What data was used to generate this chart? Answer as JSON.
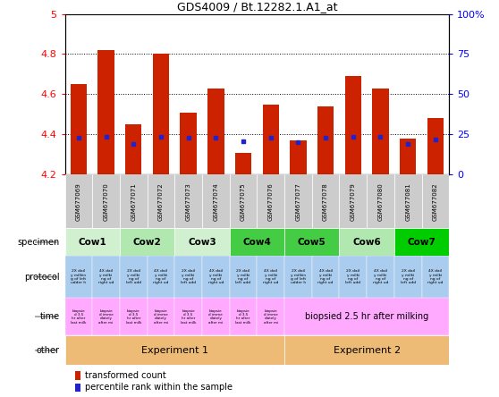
{
  "title": "GDS4009 / Bt.12282.1.A1_at",
  "samples": [
    "GSM677069",
    "GSM677070",
    "GSM677071",
    "GSM677072",
    "GSM677073",
    "GSM677074",
    "GSM677075",
    "GSM677076",
    "GSM677077",
    "GSM677078",
    "GSM677079",
    "GSM677080",
    "GSM677081",
    "GSM677082"
  ],
  "bar_values": [
    4.65,
    4.82,
    4.45,
    4.8,
    4.51,
    4.63,
    4.31,
    4.55,
    4.37,
    4.54,
    4.69,
    4.63,
    4.38,
    4.48
  ],
  "percentile_values": [
    4.385,
    4.387,
    4.355,
    4.387,
    4.382,
    4.382,
    4.365,
    4.383,
    4.36,
    4.382,
    4.387,
    4.387,
    4.355,
    4.375
  ],
  "bar_base": 4.2,
  "bar_color": "#cc2200",
  "percentile_color": "#2222cc",
  "ylim_left": [
    4.2,
    5.0
  ],
  "yticks_left": [
    4.2,
    4.4,
    4.6,
    4.8,
    5.0
  ],
  "ytick_labels_left": [
    "4.2",
    "4.4",
    "4.6",
    "4.8",
    "5"
  ],
  "yticks_right": [
    0,
    25,
    50,
    75,
    100
  ],
  "ytick_labels_right": [
    "0",
    "25",
    "50",
    "75",
    "100%"
  ],
  "grid_values": [
    4.4,
    4.6,
    4.8
  ],
  "specimen_groups": [
    {
      "label": "Cow1",
      "start": 0,
      "end": 2,
      "color": "#d0f0d0"
    },
    {
      "label": "Cow2",
      "start": 2,
      "end": 4,
      "color": "#b0e8b0"
    },
    {
      "label": "Cow3",
      "start": 4,
      "end": 6,
      "color": "#d0f0d0"
    },
    {
      "label": "Cow4",
      "start": 6,
      "end": 8,
      "color": "#44cc44"
    },
    {
      "label": "Cow5",
      "start": 8,
      "end": 10,
      "color": "#44cc44"
    },
    {
      "label": "Cow6",
      "start": 10,
      "end": 12,
      "color": "#b0e8b0"
    },
    {
      "label": "Cow7",
      "start": 12,
      "end": 14,
      "color": "#00cc00"
    }
  ],
  "protocol_texts": [
    "2X dail\ny milkin\ng of left\nudder h",
    "4X dail\ny milki\nng of\nright ud",
    "2X dail\ny milki\nng of\nleft udd",
    "4X dail\ny milki\nng of\nright ud",
    "2X dail\ny milki\nng of\nleft udd",
    "4X dail\ny milki\nng of\nright ud",
    "2X dail\ny milki\nng of\nleft udd",
    "4X dail\ny milki\nng of\nright ud",
    "2X dail\ny milkin\ng of left\nudder h",
    "4X dail\ny milki\nng of\nright ud",
    "2X dail\ny milki\nng of\nleft udd",
    "4X dail\ny milki\nng of\nright ud",
    "2X dail\ny milki\nng of\nleft udd",
    "4X dail\ny milki\nng of\nright ud"
  ],
  "protocol_color": "#aaccee",
  "time_texts_exp1": [
    "biopsie\nd 3.5\nhr after\nlast milk",
    "biopsie\nd imme\ndiately\nafter mi",
    "biopsie\nd 3.5\nhr after\nlast milk",
    "biopsie\nd imme\ndiately\nafter mi",
    "biopsie\nd 3.5\nhr after\nlast milk",
    "biopsie\nd imme\ndiately\nafter mi",
    "biopsie\nd 3.5\nhr after\nlast milk",
    "biopsie\nd imme\ndiately\nafter mi"
  ],
  "time_text_exp2": "biopsied 2.5 hr after milking",
  "time_color": "#ffaaff",
  "other_exp1_label": "Experiment 1",
  "other_exp2_label": "Experiment 2",
  "other_color": "#eebb77",
  "legend_items": [
    {
      "color": "#cc2200",
      "label": "transformed count"
    },
    {
      "color": "#2222cc",
      "label": "percentile rank within the sample"
    }
  ],
  "col_gray": "#cccccc",
  "exp1_boundary": 8
}
